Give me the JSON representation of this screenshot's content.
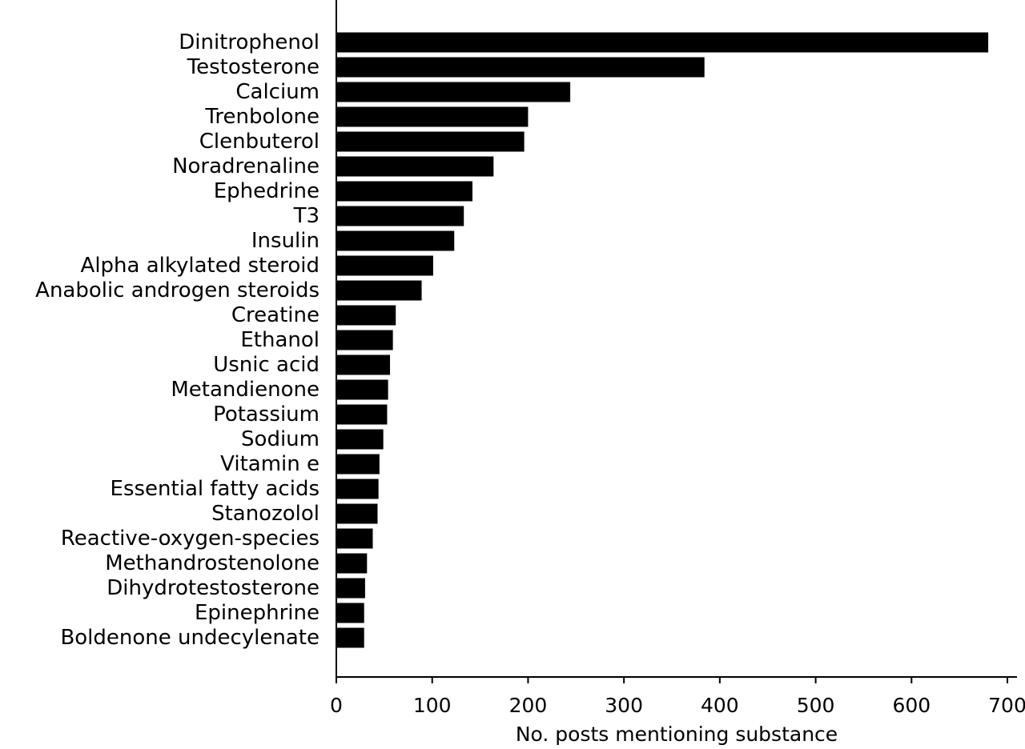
{
  "chart_data": {
    "type": "bar",
    "orientation": "horizontal",
    "title": "",
    "xlabel": "No. posts mentioning substance",
    "ylabel": "",
    "xlim": [
      0,
      710
    ],
    "xticks": [
      0,
      100,
      200,
      300,
      400,
      500,
      600,
      700
    ],
    "grid": false,
    "bar_color": "#000000",
    "categories": [
      "Dinitrophenol",
      "Testosterone",
      "Calcium",
      "Trenbolone",
      "Clenbuterol",
      "Noradrenaline",
      "Ephedrine",
      "T3",
      "Insulin",
      "Alpha alkylated steroid",
      "Anabolic androgen steroids",
      "Creatine",
      "Ethanol",
      "Usnic acid",
      "Metandienone",
      "Potassium",
      "Sodium",
      "Vitamin e",
      "Essential fatty acids",
      "Stanozolol",
      "Reactive-oxygen-species",
      "Methandrostenolone",
      "Dihydrotestosterone",
      "Epinephrine",
      "Boldenone undecylenate"
    ],
    "values": [
      680,
      384,
      244,
      200,
      196,
      164,
      142,
      133,
      123,
      101,
      89,
      62,
      59,
      56,
      54,
      53,
      49,
      45,
      44,
      43,
      38,
      32,
      30,
      29,
      29
    ]
  }
}
